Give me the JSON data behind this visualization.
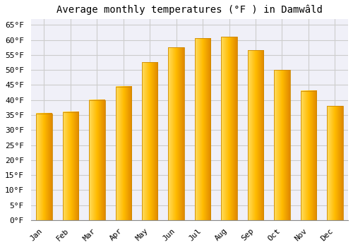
{
  "title": "Average monthly temperatures (°F ) in Damwâld",
  "months": [
    "Jan",
    "Feb",
    "Mar",
    "Apr",
    "May",
    "Jun",
    "Jul",
    "Aug",
    "Sep",
    "Oct",
    "Nov",
    "Dec"
  ],
  "values": [
    35.5,
    36.0,
    40.0,
    44.5,
    52.5,
    57.5,
    60.5,
    61.0,
    56.5,
    50.0,
    43.0,
    38.0
  ],
  "bar_color_center": "#FFBB00",
  "bar_color_left": "#FFDD60",
  "bar_color_right": "#E08800",
  "bar_edge_color": "#CC8800",
  "ylim": [
    0,
    67
  ],
  "yticks": [
    0,
    5,
    10,
    15,
    20,
    25,
    30,
    35,
    40,
    45,
    50,
    55,
    60,
    65
  ],
  "ytick_labels": [
    "0°F",
    "5°F",
    "10°F",
    "15°F",
    "20°F",
    "25°F",
    "30°F",
    "35°F",
    "40°F",
    "45°F",
    "50°F",
    "55°F",
    "60°F",
    "65°F"
  ],
  "background_color": "#ffffff",
  "plot_bg_color": "#f0f0f8",
  "grid_color": "#cccccc",
  "title_fontsize": 10,
  "tick_fontsize": 8,
  "font_family": "monospace",
  "bar_width": 0.6
}
